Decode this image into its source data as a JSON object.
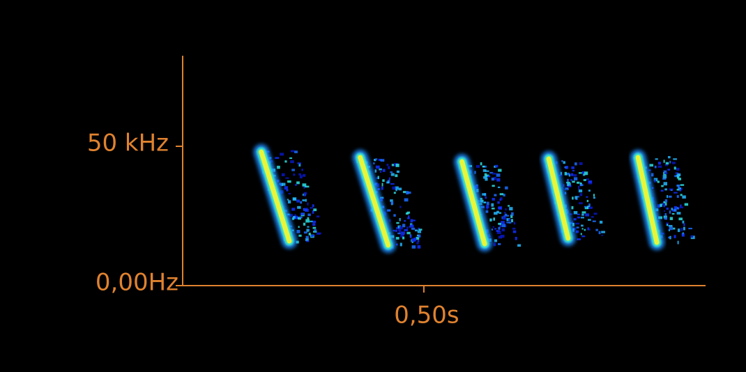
{
  "chart_data": {
    "type": "spectrogram",
    "xlim": [
      0,
      1.084
    ],
    "ylim": [
      0,
      82500
    ],
    "xticks": [
      {
        "value": 0.5,
        "label": "0,50s"
      }
    ],
    "yticks": [
      {
        "value": 0,
        "label": "0,00Hz"
      },
      {
        "value": 50000,
        "label": "50 kHz"
      }
    ],
    "axis_color": "#e0822f",
    "calls": [
      {
        "t_start": 0.163,
        "t_end": 0.221,
        "f_start": 48000,
        "f_end": 16000
      },
      {
        "t_start": 0.368,
        "t_end": 0.426,
        "f_start": 46000,
        "f_end": 14500
      },
      {
        "t_start": 0.579,
        "t_end": 0.626,
        "f_start": 44500,
        "f_end": 15000
      },
      {
        "t_start": 0.759,
        "t_end": 0.799,
        "f_start": 45500,
        "f_end": 17000
      },
      {
        "t_start": 0.944,
        "t_end": 0.983,
        "f_start": 46000,
        "f_end": 15500
      }
    ]
  }
}
